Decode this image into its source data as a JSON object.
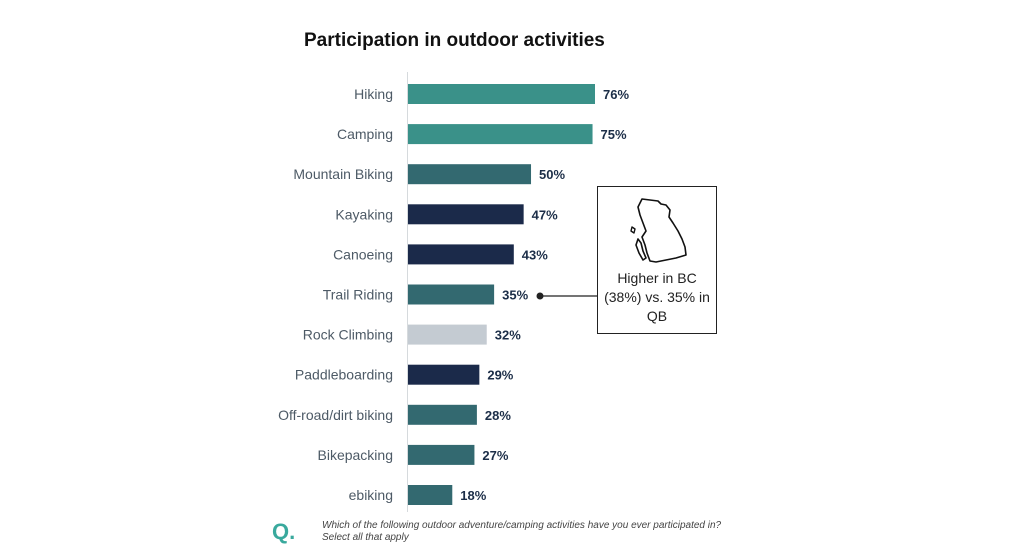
{
  "chart_data": {
    "type": "bar",
    "orientation": "horizontal",
    "title": "Participation in outdoor activities",
    "categories": [
      "Hiking",
      "Camping",
      "Mountain Biking",
      "Kayaking",
      "Canoeing",
      "Trail Riding",
      "Rock Climbing",
      "Paddleboarding",
      "Off-road/dirt biking",
      "Bikepacking",
      "ebiking"
    ],
    "values": [
      76,
      75,
      50,
      47,
      43,
      35,
      32,
      29,
      28,
      27,
      18
    ],
    "value_labels": [
      "76%",
      "75%",
      "50%",
      "47%",
      "43%",
      "35%",
      "32%",
      "29%",
      "28%",
      "27%",
      "18%"
    ],
    "bar_colors": [
      "#3a9189",
      "#3a9189",
      "#336970",
      "#1b2a4a",
      "#1b2a4a",
      "#336970",
      "#c4cbd2",
      "#1b2a4a",
      "#336970",
      "#336970",
      "#336970"
    ],
    "unit": "%",
    "xlim": [
      0,
      100
    ],
    "grid": false
  },
  "callout": {
    "target_category": "Trail Riding",
    "text": "Higher in BC (38%) vs. 35% in QB",
    "icon": "british-columbia-map-icon"
  },
  "footer": {
    "logo": "Q.",
    "question": "Which of the following outdoor adventure/camping activities have you ever participated in?",
    "instruction": "Select all that apply"
  },
  "colors": {
    "teal": "#3a9189",
    "dark_teal": "#336970",
    "navy": "#1b2a4a",
    "grey": "#c4cbd2",
    "logo": "#39a99d"
  }
}
